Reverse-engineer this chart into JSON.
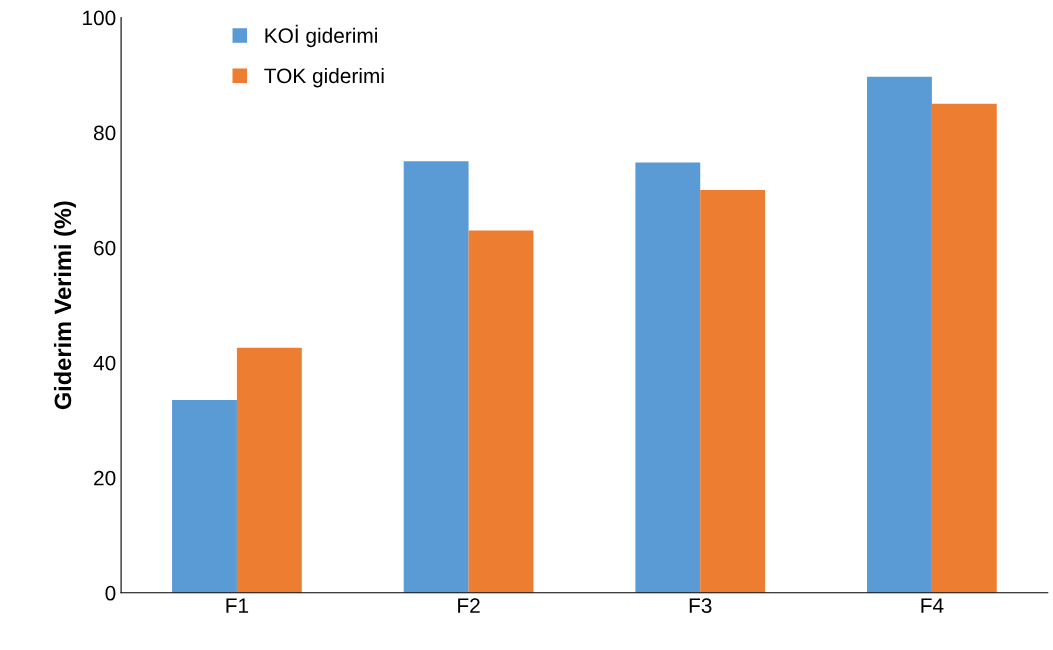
{
  "chart_data": {
    "type": "bar",
    "ylabel": "Giderim Verimi (%)",
    "categories": [
      "F1",
      "F2",
      "F3",
      "F4"
    ],
    "series": [
      {
        "name": "KOİ giderimi",
        "color": "#5b9bd5",
        "values": [
          33.5,
          75,
          74.8,
          89.7
        ]
      },
      {
        "name": "TOK giderimi",
        "color": "#ed7d31",
        "values": [
          42.6,
          63,
          70,
          85
        ]
      }
    ],
    "ylim": [
      0,
      100
    ],
    "yticks": [
      0,
      20,
      40,
      60,
      80,
      100
    ],
    "grid": false,
    "legend": "top left"
  }
}
